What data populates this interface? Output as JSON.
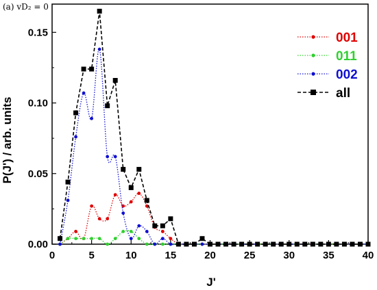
{
  "panel_label": "(a) vD₂ = 0",
  "chart_data": {
    "type": "line",
    "xlabel": "J'",
    "ylabel": "P(J') / arb. units",
    "xlim": [
      0,
      40
    ],
    "ylim": [
      0,
      0.17
    ],
    "xticks": [
      0,
      5,
      10,
      15,
      20,
      25,
      30,
      35,
      40
    ],
    "yticks": [
      0.0,
      0.05,
      0.1,
      0.15
    ],
    "ytick_labels": [
      "0.00",
      "0.05",
      "0.10",
      "0.15"
    ],
    "grid": false,
    "legend_position": "top-right",
    "series": [
      {
        "name": "001",
        "color": "#e00000",
        "marker": "circle",
        "line": "dotted",
        "legend_color": "#e00000",
        "x": [
          1,
          2,
          3,
          4,
          5,
          6,
          7,
          8,
          9,
          10,
          11,
          12,
          13,
          14,
          15,
          16,
          17,
          18,
          19,
          20,
          21,
          22,
          23,
          24,
          25,
          26,
          27,
          28,
          29,
          30,
          31,
          32,
          33,
          34,
          35,
          36,
          37,
          38,
          39,
          40
        ],
        "y": [
          0,
          0.004,
          0.009,
          0.004,
          0.027,
          0.018,
          0.018,
          0.035,
          0.027,
          0.03,
          0.036,
          0.027,
          0.012,
          0.009,
          0.004,
          0,
          0,
          0,
          0,
          0,
          0,
          0,
          0,
          0,
          0,
          0,
          0,
          0,
          0,
          0,
          0,
          0,
          0,
          0,
          0,
          0,
          0,
          0,
          0,
          0
        ]
      },
      {
        "name": "011",
        "color": "#30d030",
        "marker": "circle",
        "line": "dotted",
        "legend_color": "#30d030",
        "x": [
          1,
          2,
          3,
          4,
          5,
          6,
          7,
          8,
          9,
          10,
          11,
          12,
          13,
          14,
          15,
          16,
          17,
          18,
          19,
          20,
          21,
          22,
          23,
          24,
          25,
          26,
          27,
          28,
          29,
          30,
          31,
          32,
          33,
          34,
          35,
          36,
          37,
          38,
          39,
          40
        ],
        "y": [
          0,
          0.004,
          0.004,
          0.004,
          0.004,
          0.004,
          0,
          0.004,
          0.009,
          0.009,
          0.004,
          0,
          0,
          0,
          0,
          0,
          0,
          0,
          0,
          0,
          0,
          0,
          0,
          0,
          0,
          0,
          0,
          0,
          0,
          0,
          0,
          0,
          0,
          0,
          0,
          0,
          0,
          0,
          0,
          0
        ]
      },
      {
        "name": "002",
        "color": "#1010d0",
        "marker": "circle",
        "line": "dotted",
        "legend_color": "#1010d0",
        "x": [
          1,
          2,
          3,
          4,
          5,
          6,
          7,
          8,
          9,
          10,
          11,
          12,
          13,
          14,
          15,
          16,
          17,
          18,
          19,
          20,
          21,
          22,
          23,
          24,
          25,
          26,
          27,
          28,
          29,
          30,
          31,
          32,
          33,
          34,
          35,
          36,
          37,
          38,
          39,
          40
        ],
        "y": [
          0,
          0.031,
          0.076,
          0.107,
          0.089,
          0.138,
          0.062,
          0.062,
          0.022,
          0.004,
          0.013,
          0.009,
          0,
          0.004,
          0,
          0,
          0,
          0,
          0,
          0,
          0,
          0,
          0,
          0,
          0,
          0,
          0,
          0,
          0,
          0,
          0,
          0,
          0,
          0,
          0,
          0,
          0,
          0,
          0,
          0
        ]
      },
      {
        "name": "all",
        "color": "#000000",
        "marker": "square",
        "line": "dashed",
        "legend_color": "#000000",
        "x": [
          1,
          2,
          3,
          4,
          5,
          6,
          7,
          8,
          9,
          10,
          11,
          12,
          13,
          14,
          15,
          16,
          17,
          18,
          19,
          20,
          21,
          22,
          23,
          24,
          25,
          26,
          27,
          28,
          29,
          30,
          31,
          32,
          33,
          34,
          35,
          36,
          37,
          38,
          39,
          40
        ],
        "y": [
          0.004,
          0.044,
          0.093,
          0.124,
          0.124,
          0.165,
          0.098,
          0.116,
          0.053,
          0.04,
          0.053,
          0.031,
          0.013,
          0.013,
          0.018,
          0,
          0,
          0,
          0.004,
          0,
          0,
          0,
          0,
          0,
          0,
          0,
          0,
          0,
          0,
          0,
          0,
          0,
          0,
          0,
          0,
          0,
          0,
          0,
          0,
          0
        ]
      }
    ]
  }
}
